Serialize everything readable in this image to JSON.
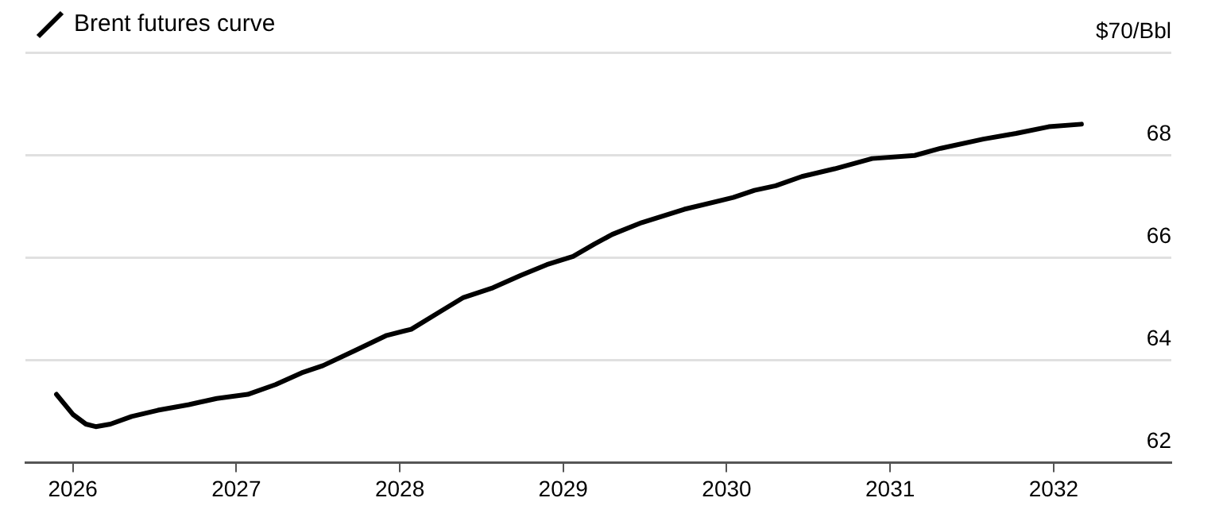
{
  "chart_data": {
    "type": "line",
    "x": [
      2025.9,
      2026.0,
      2026.08,
      2026.14,
      2026.23,
      2026.36,
      2026.52,
      2026.71,
      2026.88,
      2027.07,
      2027.24,
      2027.4,
      2027.53,
      2027.73,
      2027.92,
      2028.07,
      2028.25,
      2028.39,
      2028.57,
      2028.74,
      2028.9,
      2029.06,
      2029.19,
      2029.3,
      2029.48,
      2029.74,
      2030.04,
      2030.17,
      2030.3,
      2030.46,
      2030.66,
      2030.89,
      2031.15,
      2031.31,
      2031.57,
      2031.77,
      2031.97,
      2032.17
    ],
    "series": [
      {
        "name": "Brent futures curve",
        "color": "#000000",
        "values": [
          63.33,
          62.94,
          62.75,
          62.7,
          62.75,
          62.9,
          63.02,
          63.13,
          63.25,
          63.33,
          63.52,
          63.75,
          63.89,
          64.19,
          64.48,
          64.6,
          64.95,
          65.22,
          65.41,
          65.65,
          65.86,
          66.02,
          66.26,
          66.45,
          66.68,
          66.94,
          67.17,
          67.31,
          67.4,
          67.58,
          67.73,
          67.93,
          67.99,
          68.13,
          68.31,
          68.42,
          68.55,
          68.6
        ]
      }
    ],
    "xlim": [
      2025.71,
      2032.72
    ],
    "xticks": [
      2026,
      2027,
      2028,
      2029,
      2030,
      2031,
      2032
    ],
    "ylim": [
      62,
      70
    ],
    "yticks": [
      62,
      64,
      66,
      68,
      {
        "value": 70,
        "label": "$70/Bbl"
      }
    ],
    "grid": "y",
    "legend": "top left",
    "marker": "none",
    "line_style": "solid"
  }
}
